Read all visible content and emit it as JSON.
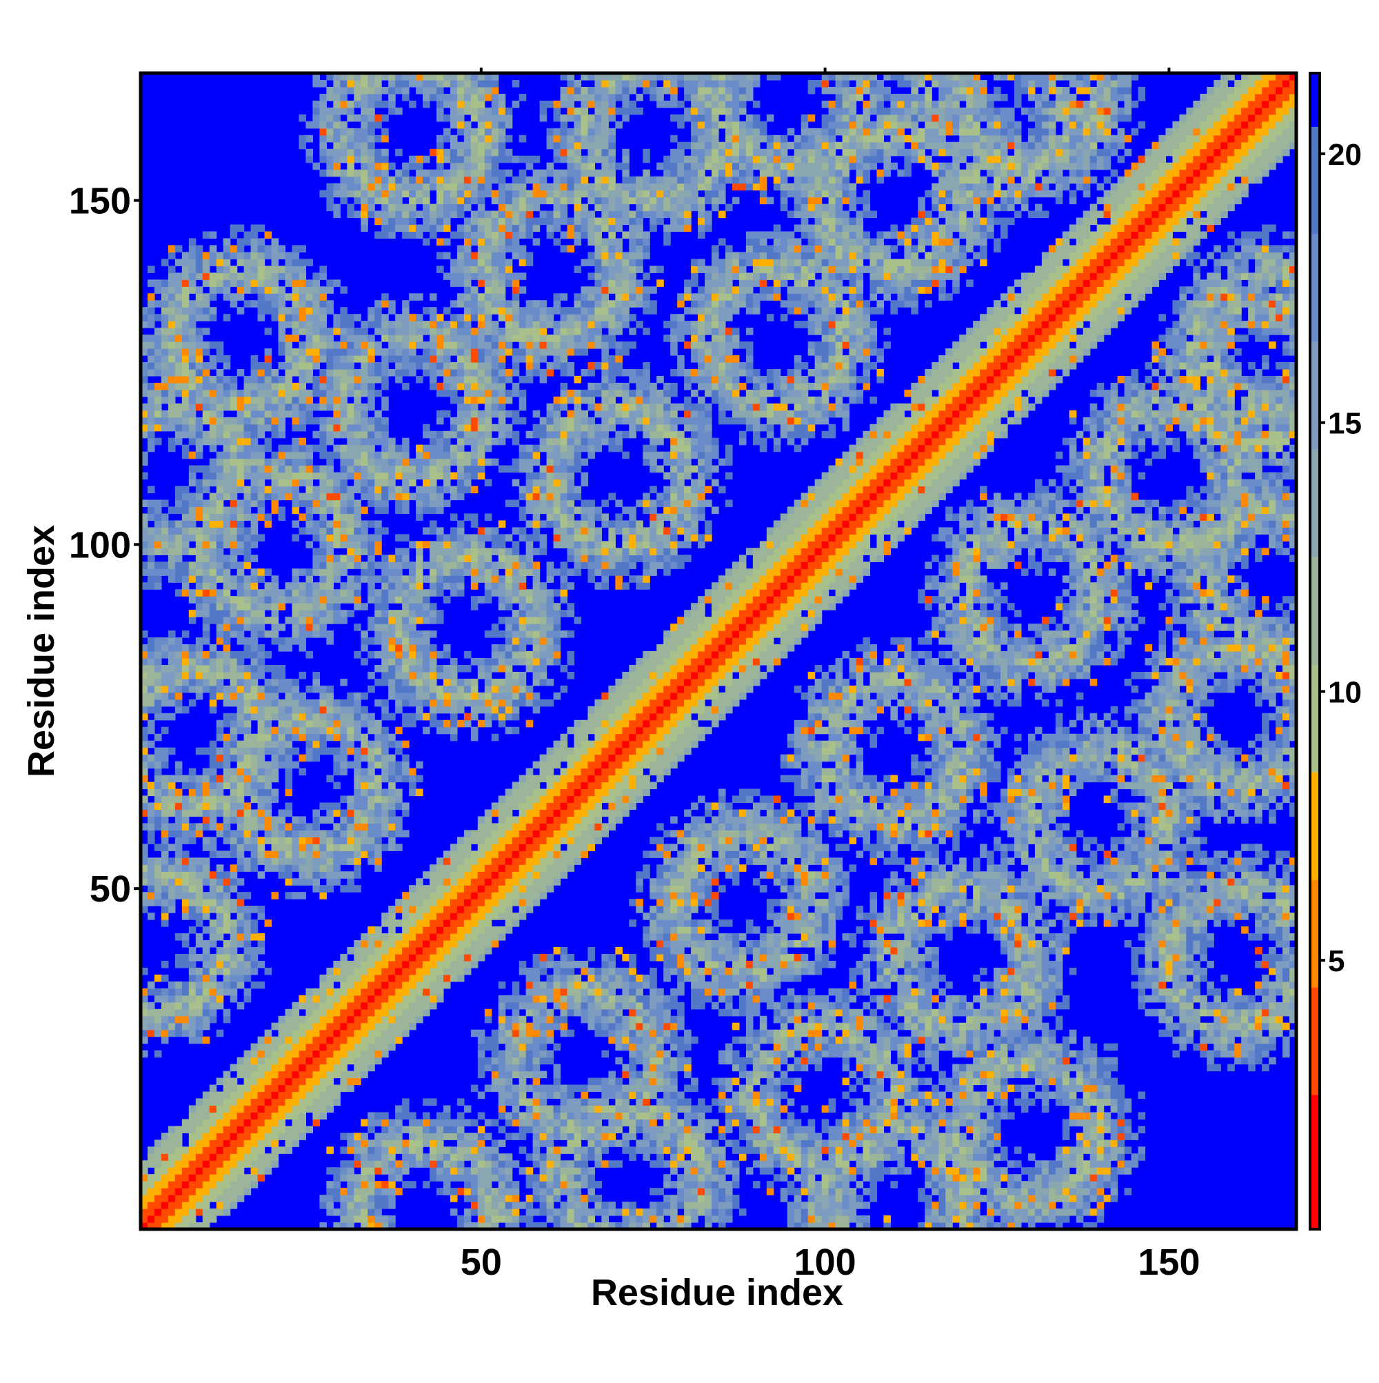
{
  "chart_data": {
    "type": "heatmap",
    "title": "",
    "xlabel": "Residue index",
    "ylabel": "Residue index",
    "n_residues": 168,
    "xlim": [
      1,
      168
    ],
    "ylim": [
      1,
      168
    ],
    "x_ticks": [
      {
        "value": 50,
        "label": "50"
      },
      {
        "value": 100,
        "label": "100"
      },
      {
        "value": 150,
        "label": "150"
      }
    ],
    "y_ticks": [
      {
        "value": 50,
        "label": "50"
      },
      {
        "value": 100,
        "label": "100"
      },
      {
        "value": 150,
        "label": "150"
      }
    ],
    "colorbar": {
      "range": [
        0,
        21.5
      ],
      "ticks": [
        {
          "value": 5,
          "label": "5"
        },
        {
          "value": 10,
          "label": "10"
        },
        {
          "value": 15,
          "label": "15"
        },
        {
          "value": 20,
          "label": "20"
        }
      ],
      "colors": [
        {
          "from": 0,
          "to": 2.5,
          "color": "#ff0000"
        },
        {
          "from": 2.5,
          "to": 4.5,
          "color": "#ff4a00"
        },
        {
          "from": 4.5,
          "to": 6.5,
          "color": "#ff8a00"
        },
        {
          "from": 6.5,
          "to": 8.5,
          "color": "#ffb000"
        },
        {
          "from": 8.5,
          "to": 10.5,
          "color": "#a9c08a"
        },
        {
          "from": 10.5,
          "to": 12.5,
          "color": "#9cb49a"
        },
        {
          "from": 12.5,
          "to": 14.5,
          "color": "#8aa6b0"
        },
        {
          "from": 14.5,
          "to": 16.5,
          "color": "#7e9cc0"
        },
        {
          "from": 16.5,
          "to": 18.5,
          "color": "#6a8cc8"
        },
        {
          "from": 18.5,
          "to": 20.5,
          "color": "#5478c8"
        },
        {
          "from": 20.5,
          "to": 21.5,
          "color": "#0000ff"
        }
      ]
    },
    "value_above_range": 21.5,
    "structure": {
      "diagonal": true,
      "ring_centers": [
        [
          3,
          42
        ],
        [
          25,
          65
        ],
        [
          48,
          88
        ],
        [
          70,
          110
        ],
        [
          93,
          130
        ],
        [
          110,
          150
        ],
        [
          125,
          163
        ],
        [
          8,
          72
        ],
        [
          20,
          100
        ],
        [
          40,
          120
        ],
        [
          60,
          140
        ],
        [
          75,
          160
        ],
        [
          95,
          165
        ],
        [
          130,
          165
        ],
        [
          40,
          160
        ],
        [
          15,
          130
        ],
        [
          5,
          110
        ]
      ]
    }
  }
}
